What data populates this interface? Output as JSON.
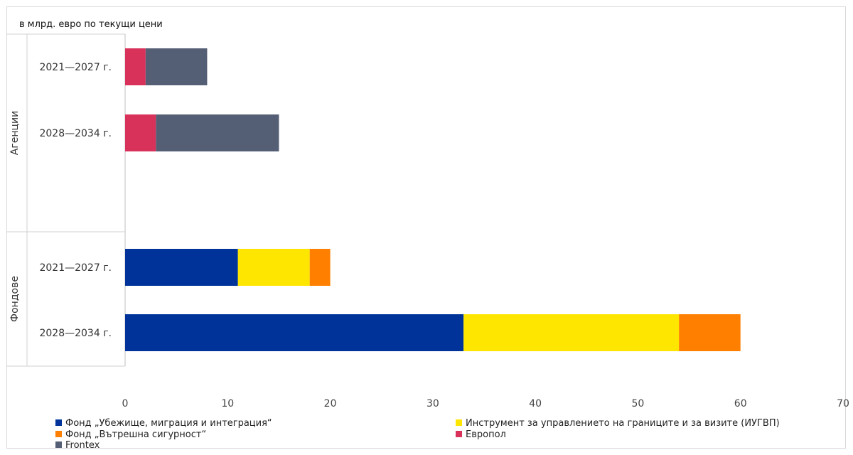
{
  "chart_data": {
    "type": "bar",
    "orientation": "horizontal",
    "stacked": true,
    "title": "",
    "unit_label": "в млрд. евро по текущи цени",
    "xlim": [
      0,
      70
    ],
    "x_ticks": [
      0,
      10,
      20,
      30,
      40,
      50,
      60,
      70
    ],
    "groups": [
      {
        "name": "Агенции",
        "categories": [
          "2021—2027 г.",
          "2028—2034 г."
        ]
      },
      {
        "name": "Фондове",
        "categories": [
          "2021—2027 г.",
          "2028—2034 г."
        ]
      }
    ],
    "series": [
      {
        "name": "Фонд „Убежище, миграция и интеграция“",
        "color": "#003399",
        "values": [
          0,
          0,
          11,
          33
        ]
      },
      {
        "name": "Инструмент за управлението на границите и за визите (ИУГВП)",
        "color": "#FFE600",
        "values": [
          0,
          0,
          7,
          21
        ]
      },
      {
        "name": "Фонд „Вътрешна сигурност“",
        "color": "#FF8000",
        "values": [
          0,
          0,
          2,
          6
        ]
      },
      {
        "name": "Европол",
        "color": "#D9325A",
        "values": [
          2,
          3,
          0,
          0
        ]
      },
      {
        "name": "Frontex",
        "color": "#545E75",
        "values": [
          6,
          12,
          0,
          0
        ]
      }
    ],
    "legend_position": "bottom",
    "grid": false
  }
}
